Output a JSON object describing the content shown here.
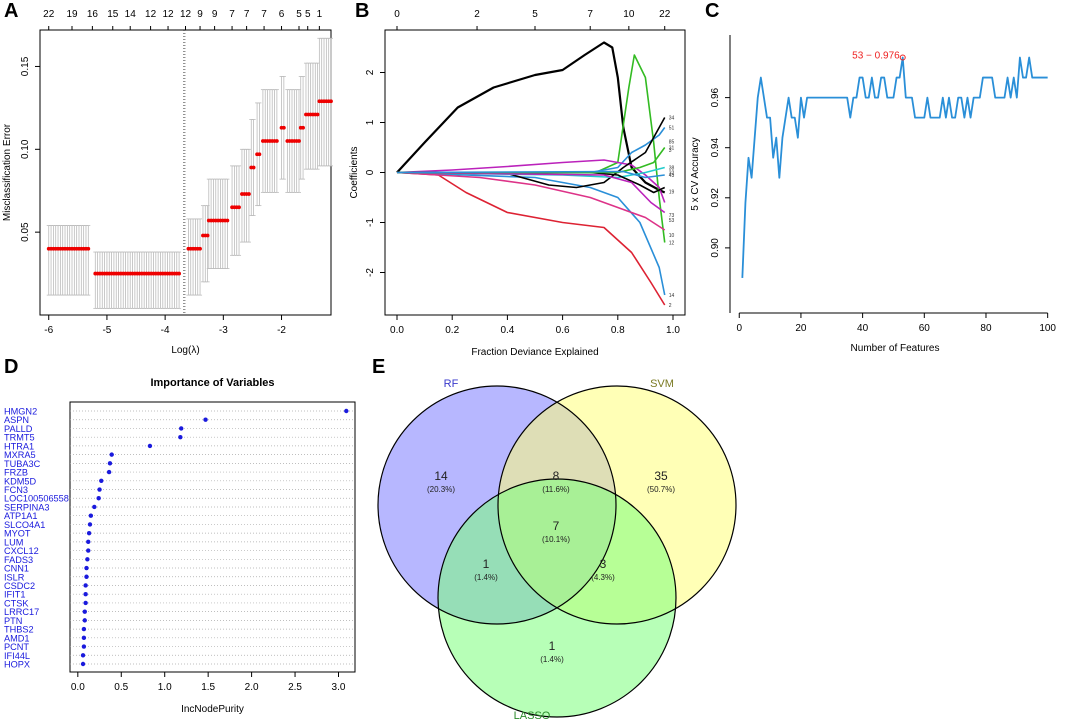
{
  "panels": {
    "A": "A",
    "B": "B",
    "C": "C",
    "D": "D",
    "E": "E"
  },
  "chart_data": [
    {
      "panel": "A",
      "type": "scatter",
      "subtype": "cv-error-with-errorbars",
      "xlabel": "Log(λ)",
      "ylabel": "Misclassification Error",
      "xlim": [
        -6.15,
        -1.15
      ],
      "ylim": [
        0.0,
        0.172
      ],
      "xticks": [
        -6,
        -5,
        -4,
        -3,
        -2
      ],
      "yticks": [
        0.05,
        0.1,
        0.15
      ],
      "ytick_labels": [
        "0.05",
        "0.10",
        "0.15"
      ],
      "top_axis_labels": [
        "22",
        "19",
        "16",
        "15",
        "14",
        "12",
        "12",
        "12",
        "9",
        "9",
        "7",
        "7",
        "7",
        "6",
        "5",
        "5",
        "1"
      ],
      "top_axis_x": [
        -6.0,
        -5.6,
        -5.25,
        -4.9,
        -4.6,
        -4.25,
        -3.95,
        -3.65,
        -3.4,
        -3.15,
        -2.85,
        -2.6,
        -2.3,
        -2.0,
        -1.7,
        -1.55,
        -1.35
      ],
      "vline_x": [
        -3.68,
        -3.66
      ],
      "segments": [
        {
          "x0": -6.0,
          "x1": -5.3,
          "y": 0.04,
          "lo": 0.012,
          "hi": 0.054
        },
        {
          "x0": -5.2,
          "x1": -3.73,
          "y": 0.025,
          "lo": 0.004,
          "hi": 0.038
        },
        {
          "x0": -3.6,
          "x1": -3.4,
          "y": 0.04,
          "lo": 0.012,
          "hi": 0.058
        },
        {
          "x0": -3.35,
          "x1": -3.27,
          "y": 0.048,
          "lo": 0.02,
          "hi": 0.066
        },
        {
          "x0": -3.25,
          "x1": -2.9,
          "y": 0.057,
          "lo": 0.028,
          "hi": 0.082
        },
        {
          "x0": -2.85,
          "x1": -2.7,
          "y": 0.065,
          "lo": 0.036,
          "hi": 0.09
        },
        {
          "x0": -2.68,
          "x1": -2.55,
          "y": 0.073,
          "lo": 0.044,
          "hi": 0.1
        },
        {
          "x0": -2.52,
          "x1": -2.45,
          "y": 0.089,
          "lo": 0.06,
          "hi": 0.118
        },
        {
          "x0": -2.42,
          "x1": -2.35,
          "y": 0.097,
          "lo": 0.066,
          "hi": 0.128
        },
        {
          "x0": -2.32,
          "x1": -2.05,
          "y": 0.105,
          "lo": 0.074,
          "hi": 0.136
        },
        {
          "x0": -2.0,
          "x1": -1.93,
          "y": 0.113,
          "lo": 0.082,
          "hi": 0.144
        },
        {
          "x0": -1.9,
          "x1": -1.7,
          "y": 0.105,
          "lo": 0.074,
          "hi": 0.136
        },
        {
          "x0": -1.67,
          "x1": -1.6,
          "y": 0.113,
          "lo": 0.082,
          "hi": 0.144
        },
        {
          "x0": -1.58,
          "x1": -1.38,
          "y": 0.121,
          "lo": 0.088,
          "hi": 0.152
        },
        {
          "x0": -1.35,
          "x1": -1.15,
          "y": 0.129,
          "lo": 0.09,
          "hi": 0.167
        }
      ],
      "step": 0.04
    },
    {
      "panel": "B",
      "type": "line",
      "subtype": "coefficient-paths",
      "xlabel": "Fraction Deviance Explained",
      "ylabel": "Coefficients",
      "xlim": [
        0.0,
        1.0
      ],
      "ylim": [
        -2.85,
        2.85
      ],
      "xticks": [
        0.0,
        0.2,
        0.4,
        0.6,
        0.8,
        1.0
      ],
      "xtick_labels": [
        "0.0",
        "0.2",
        "0.4",
        "0.6",
        "0.8",
        "1.0"
      ],
      "yticks": [
        -2,
        -1,
        0,
        1,
        2
      ],
      "top_axis_labels": [
        "0",
        "2",
        "5",
        "7",
        "10",
        "22"
      ],
      "top_axis_x": [
        0.0,
        0.29,
        0.5,
        0.7,
        0.84,
        0.97
      ],
      "series": [
        {
          "name": "black-main",
          "color": "#000000",
          "x": [
            0,
            0.1,
            0.22,
            0.35,
            0.5,
            0.6,
            0.68,
            0.75,
            0.78,
            0.8,
            0.82,
            0.85,
            0.9,
            0.95,
            0.97
          ],
          "y": [
            0,
            0.6,
            1.3,
            1.7,
            1.95,
            2.05,
            2.35,
            2.6,
            2.5,
            1.9,
            0.9,
            0.1,
            -0.2,
            -0.35,
            -0.4
          ]
        },
        {
          "name": "green-1",
          "color": "#33bb22",
          "x": [
            0,
            0.72,
            0.8,
            0.84,
            0.86,
            0.9,
            0.93,
            0.95,
            0.97
          ],
          "y": [
            0,
            0,
            0.2,
            1.7,
            2.35,
            1.9,
            0.6,
            -0.5,
            -1.4
          ]
        },
        {
          "name": "blue-1",
          "color": "#2a8fd8",
          "x": [
            0,
            0.7,
            0.8,
            0.85,
            0.9,
            0.95,
            0.97
          ],
          "y": [
            0,
            0,
            0.1,
            0.4,
            0.55,
            0.75,
            0.9
          ]
        },
        {
          "name": "magenta-1",
          "color": "#bb22bb",
          "x": [
            0,
            0.2,
            0.4,
            0.6,
            0.75,
            0.85,
            0.9,
            0.95,
            0.97
          ],
          "y": [
            0,
            0.05,
            0.12,
            0.2,
            0.25,
            0.15,
            -0.05,
            -0.3,
            -0.6
          ]
        },
        {
          "name": "red-1",
          "color": "#dd2233",
          "x": [
            0,
            0.15,
            0.25,
            0.4,
            0.6,
            0.75,
            0.85,
            0.92,
            0.97
          ],
          "y": [
            0,
            -0.05,
            -0.4,
            -0.8,
            -1.0,
            -1.1,
            -1.6,
            -2.2,
            -2.65
          ]
        },
        {
          "name": "blue-2",
          "color": "#2a8fd8",
          "x": [
            0,
            0.5,
            0.7,
            0.8,
            0.88,
            0.95,
            0.97
          ],
          "y": [
            0,
            -0.1,
            -0.3,
            -0.5,
            -1.0,
            -1.9,
            -2.45
          ]
        },
        {
          "name": "pink-1",
          "color": "#dd3388",
          "x": [
            0,
            0.3,
            0.5,
            0.7,
            0.8,
            0.9,
            0.97
          ],
          "y": [
            0,
            -0.1,
            -0.25,
            -0.5,
            -0.7,
            -0.9,
            -1.15
          ]
        },
        {
          "name": "black-2",
          "color": "#000000",
          "x": [
            0,
            0.4,
            0.55,
            0.65,
            0.75,
            0.82,
            0.9,
            0.97
          ],
          "y": [
            0,
            -0.02,
            -0.25,
            -0.3,
            -0.2,
            0.1,
            0.4,
            1.1
          ]
        },
        {
          "name": "cyan-1",
          "color": "#22cccc",
          "x": [
            0,
            0.6,
            0.8,
            0.9,
            0.97
          ],
          "y": [
            0,
            -0.05,
            -0.1,
            0.0,
            0.1
          ]
        },
        {
          "name": "black-3",
          "color": "#000000",
          "x": [
            0,
            0.7,
            0.8,
            0.88,
            0.93,
            0.97
          ],
          "y": [
            0,
            0,
            -0.05,
            -0.25,
            -0.4,
            -0.3
          ]
        },
        {
          "name": "magenta-2",
          "color": "#bb22bb",
          "x": [
            0,
            0.75,
            0.85,
            0.92,
            0.97
          ],
          "y": [
            0,
            -0.05,
            -0.2,
            -0.6,
            -0.8
          ]
        },
        {
          "name": "green-2",
          "color": "#33bb22",
          "x": [
            0,
            0.8,
            0.88,
            0.93,
            0.97
          ],
          "y": [
            0,
            0,
            0.1,
            0.2,
            0.5
          ]
        },
        {
          "name": "blue-3",
          "color": "#2a8fd8",
          "x": [
            0,
            0.82,
            0.9,
            0.97
          ],
          "y": [
            0,
            0.02,
            -0.1,
            -0.05
          ]
        }
      ],
      "right_labels": [
        {
          "t": "34",
          "y": 1.1
        },
        {
          "t": "51",
          "y": 0.9
        },
        {
          "t": "85",
          "y": 0.62
        },
        {
          "t": "3",
          "y": 0.45
        },
        {
          "t": "31",
          "y": 0.5
        },
        {
          "t": "38",
          "y": 0.1
        },
        {
          "t": "32",
          "y": 0.0
        },
        {
          "t": "43",
          "y": -0.05
        },
        {
          "t": "19",
          "y": -0.38
        },
        {
          "t": "73",
          "y": -0.85
        },
        {
          "t": "53",
          "y": -0.95
        },
        {
          "t": "10",
          "y": -1.25
        },
        {
          "t": "12",
          "y": -1.4
        },
        {
          "t": "14",
          "y": -2.45
        },
        {
          "t": "2",
          "y": -2.65
        }
      ]
    },
    {
      "panel": "C",
      "type": "line",
      "xlabel": "Number of Features",
      "ylabel": "5 x CV Accuracy",
      "xlim": [
        -3,
        104
      ],
      "ylim": [
        0.874,
        0.985
      ],
      "xticks": [
        0,
        20,
        40,
        60,
        80,
        100
      ],
      "yticks": [
        0.9,
        0.92,
        0.94,
        0.96
      ],
      "ytick_labels": [
        "0.90",
        "0.92",
        "0.94",
        "0.96"
      ],
      "annotation": "53 − 0.976",
      "best_x": 53,
      "best_y": 0.976,
      "color": "#2a8fd8",
      "x": [
        1,
        2,
        3,
        4,
        5,
        6,
        7,
        8,
        9,
        10,
        11,
        12,
        13,
        14,
        15,
        16,
        17,
        18,
        19,
        20,
        21,
        22,
        23,
        24,
        25,
        26,
        27,
        28,
        29,
        30,
        31,
        32,
        33,
        34,
        35,
        36,
        37,
        38,
        39,
        40,
        41,
        42,
        43,
        44,
        45,
        46,
        47,
        48,
        49,
        50,
        51,
        52,
        53,
        54,
        55,
        56,
        57,
        58,
        59,
        60,
        61,
        62,
        63,
        64,
        65,
        66,
        67,
        68,
        69,
        70,
        71,
        72,
        73,
        74,
        75,
        76,
        77,
        78,
        79,
        80,
        81,
        82,
        83,
        84,
        85,
        86,
        87,
        88,
        89,
        90,
        91,
        92,
        93,
        94,
        95,
        96,
        97,
        98,
        99,
        100
      ],
      "y": [
        0.888,
        0.918,
        0.936,
        0.928,
        0.944,
        0.96,
        0.968,
        0.96,
        0.952,
        0.952,
        0.936,
        0.944,
        0.928,
        0.944,
        0.952,
        0.96,
        0.952,
        0.952,
        0.944,
        0.96,
        0.952,
        0.96,
        0.96,
        0.96,
        0.96,
        0.96,
        0.96,
        0.96,
        0.96,
        0.96,
        0.96,
        0.96,
        0.96,
        0.96,
        0.96,
        0.952,
        0.96,
        0.96,
        0.968,
        0.968,
        0.96,
        0.96,
        0.968,
        0.96,
        0.96,
        0.968,
        0.968,
        0.96,
        0.96,
        0.96,
        0.968,
        0.968,
        0.976,
        0.96,
        0.96,
        0.96,
        0.952,
        0.952,
        0.952,
        0.952,
        0.96,
        0.952,
        0.952,
        0.952,
        0.952,
        0.96,
        0.952,
        0.96,
        0.952,
        0.952,
        0.96,
        0.96,
        0.952,
        0.96,
        0.952,
        0.96,
        0.96,
        0.96,
        0.968,
        0.968,
        0.968,
        0.968,
        0.96,
        0.96,
        0.96,
        0.96,
        0.968,
        0.96,
        0.968,
        0.96,
        0.976,
        0.968,
        0.968,
        0.976,
        0.968,
        0.968,
        0.968,
        0.968,
        0.968,
        0.968
      ]
    },
    {
      "panel": "D",
      "type": "scatter",
      "subtype": "dotchart",
      "title": "Importance of Variables",
      "xlabel": "IncNodePurity",
      "xlim": [
        -0.09,
        3.19
      ],
      "xticks": [
        0.0,
        0.5,
        1.0,
        1.5,
        2.0,
        2.5,
        3.0
      ],
      "xtick_labels": [
        "0.0",
        "0.5",
        "1.0",
        "1.5",
        "2.0",
        "2.5",
        "3.0"
      ],
      "color": "#1a1add",
      "categories": [
        "HMGN2",
        "ASPN",
        "PALLD",
        "TRMT5",
        "HTRA1",
        "MXRA5",
        "TUBA3C",
        "FRZB",
        "KDM5D",
        "FCN3",
        "LOC100506558",
        "SERPINA3",
        "ATP1A1",
        "SLCO4A1",
        "MYOT",
        "LUM",
        "CXCL12",
        "FADS3",
        "CNN1",
        "ISLR",
        "CSDC2",
        "IFIT1",
        "CTSK",
        "LRRC17",
        "PTN",
        "THBS2",
        "AMD1",
        "PCNT",
        "IFI44L",
        "HOPX"
      ],
      "values": [
        3.09,
        1.47,
        1.19,
        1.18,
        0.83,
        0.39,
        0.37,
        0.36,
        0.27,
        0.25,
        0.24,
        0.19,
        0.15,
        0.14,
        0.13,
        0.12,
        0.12,
        0.11,
        0.1,
        0.1,
        0.09,
        0.09,
        0.09,
        0.08,
        0.08,
        0.07,
        0.07,
        0.07,
        0.06,
        0.06
      ]
    },
    {
      "panel": "E",
      "type": "venn",
      "sets": [
        {
          "name": "RF",
          "color": "#7b7bff",
          "label_color": "#3a3acc"
        },
        {
          "name": "SVM",
          "color": "#ffff7a",
          "label_color": "#7a7a22"
        },
        {
          "name": "LASSO",
          "color": "#7cff7c",
          "label_color": "#2a8a2a"
        }
      ],
      "regions": [
        {
          "id": "RF-only",
          "count": "14",
          "pct": "(20.3%)"
        },
        {
          "id": "RF-SVM",
          "count": "8",
          "pct": "(11.6%)"
        },
        {
          "id": "SVM-only",
          "count": "35",
          "pct": "(50.7%)"
        },
        {
          "id": "RF-SVM-LASSO",
          "count": "7",
          "pct": "(10.1%)"
        },
        {
          "id": "RF-LASSO",
          "count": "1",
          "pct": "(1.4%)"
        },
        {
          "id": "SVM-LASSO",
          "count": "3",
          "pct": "(4.3%)"
        },
        {
          "id": "LASSO-only",
          "count": "1",
          "pct": "(1.4%)"
        }
      ]
    }
  ]
}
